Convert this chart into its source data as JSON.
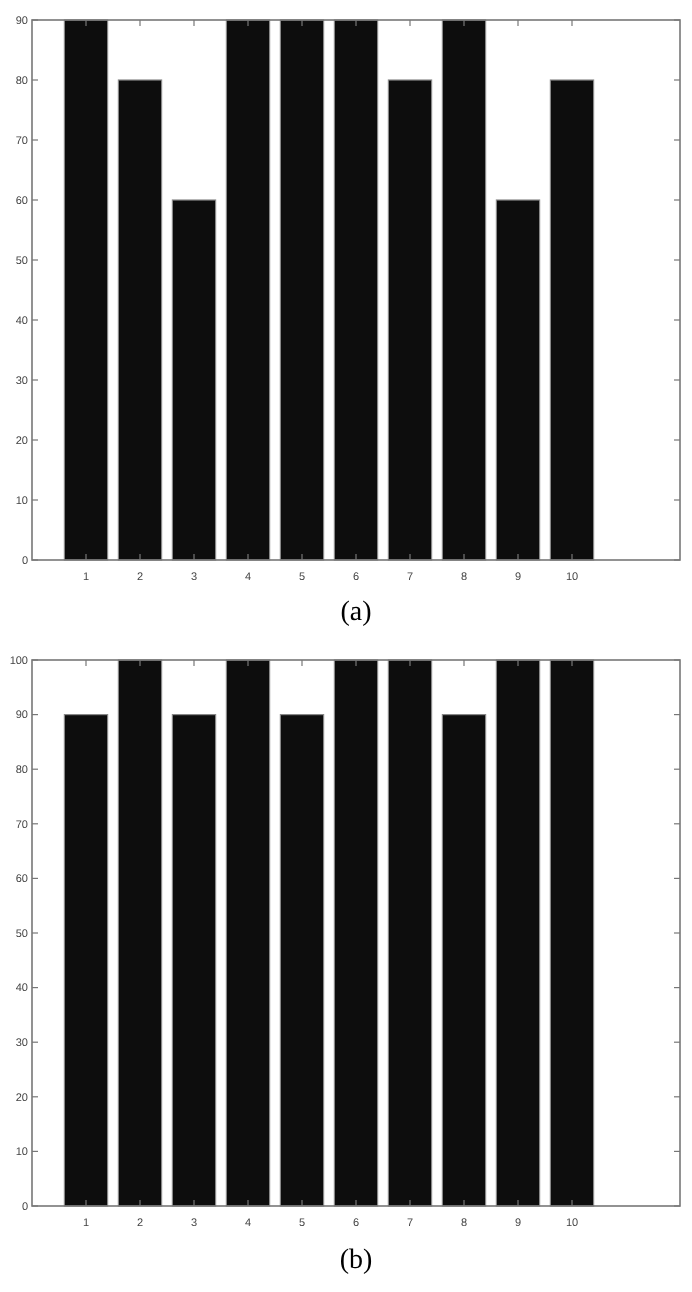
{
  "chart_data": [
    {
      "type": "bar",
      "title": "(a)",
      "x": [
        1,
        2,
        3,
        4,
        5,
        6,
        7,
        8,
        9,
        10
      ],
      "values": [
        90,
        80,
        60,
        90,
        90,
        90,
        80,
        90,
        60,
        80
      ],
      "color": "#0d0d0d",
      "xlim": [
        0,
        12
      ],
      "xticks": [
        1,
        2,
        3,
        4,
        5,
        6,
        7,
        8,
        9,
        10
      ],
      "ylim": [
        0,
        90
      ],
      "yticks": [
        0,
        10,
        20,
        30,
        40,
        50,
        60,
        70,
        80,
        90
      ]
    },
    {
      "type": "bar",
      "title": "(b)",
      "x": [
        1,
        2,
        3,
        4,
        5,
        6,
        7,
        8,
        9,
        10
      ],
      "values": [
        90,
        100,
        90,
        100,
        90,
        100,
        100,
        90,
        100,
        100
      ],
      "color": "#0d0d0d",
      "xlim": [
        0,
        12
      ],
      "xticks": [
        1,
        2,
        3,
        4,
        5,
        6,
        7,
        8,
        9,
        10
      ],
      "ylim": [
        0,
        100
      ],
      "yticks": [
        0,
        10,
        20,
        30,
        40,
        50,
        60,
        70,
        80,
        90,
        100
      ]
    }
  ]
}
